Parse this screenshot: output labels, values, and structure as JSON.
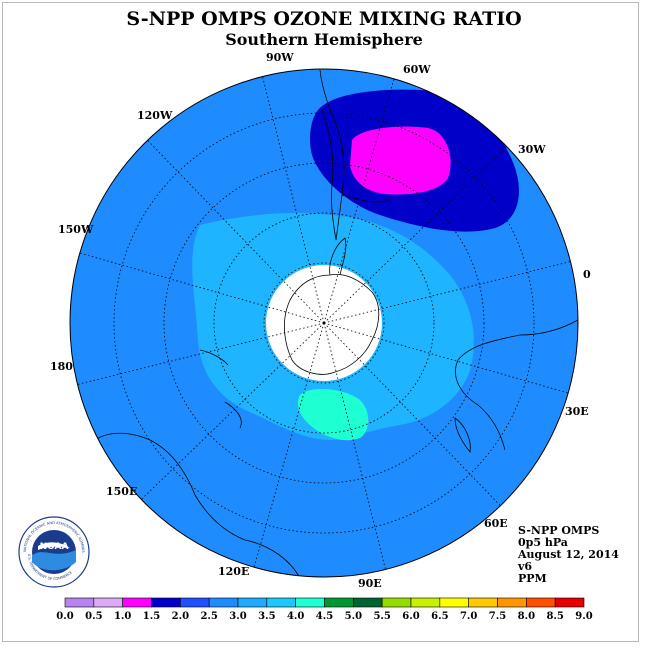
{
  "title": "S-NPP OMPS OZONE MIXING RATIO",
  "subtitle": "Southern Hemisphere",
  "longitude_labels": [
    "90W",
    "60W",
    "30W",
    "0",
    "30E",
    "60E",
    "90E",
    "120E",
    "150E",
    "180",
    "150W",
    "120W"
  ],
  "info": {
    "instrument": "S-NPP OMPS",
    "level": "0p5 hPa",
    "date": "August 12, 2014",
    "version": "v6",
    "units": "PPM"
  },
  "logo": {
    "text": "NOAA",
    "ring_text": "NATIONAL OCEANIC AND ATMOSPHERIC ADMINISTRATION",
    "ring_text_bottom": "U.S. DEPARTMENT OF COMMERCE"
  },
  "colorbar": {
    "labels": [
      "0.0",
      "0.5",
      "1.0",
      "1.5",
      "2.0",
      "2.5",
      "3.0",
      "3.5",
      "4.0",
      "4.5",
      "5.0",
      "5.5",
      "6.0",
      "6.5",
      "7.0",
      "7.5",
      "8.0",
      "8.5",
      "9.0"
    ],
    "colors": [
      "#b784f0",
      "#dcaaf8",
      "#ff00ff",
      "#0000c8",
      "#1e50ff",
      "#1e8cff",
      "#1eaaff",
      "#1ec8ff",
      "#1effd2",
      "#009632",
      "#006432",
      "#96dc00",
      "#c8f000",
      "#ffff00",
      "#ffc800",
      "#ff9600",
      "#ff5000",
      "#e60000",
      "#8c5032"
    ]
  },
  "colors": {
    "level_2_0_2_5": "#1e6ef0",
    "level_2_5_3_0": "#1e8cff",
    "level_3_0_3_5": "#1eb4ff",
    "level_3_5_4_0": "#1cd0ff",
    "level_4_0_4_5": "#1effd2",
    "level_1_5_2_0": "#0000c8",
    "level_1_0_1_5": "#ff00ff"
  }
}
